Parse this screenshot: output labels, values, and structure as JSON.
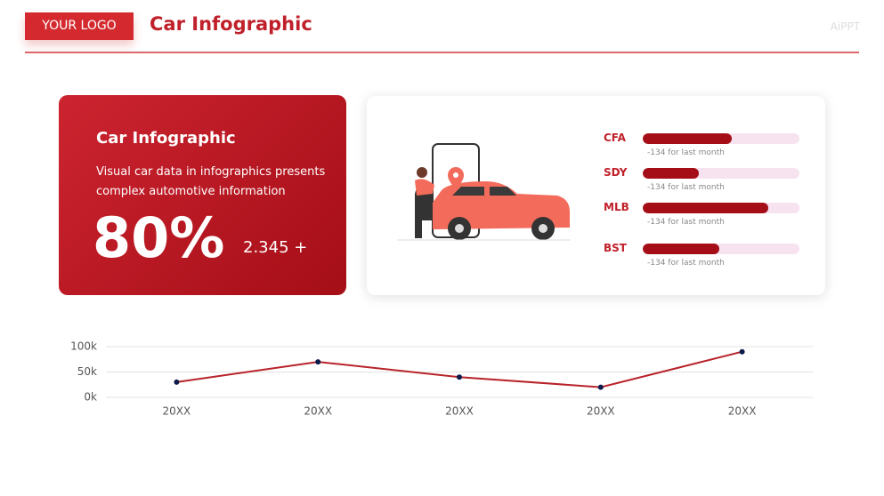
{
  "header": {
    "logo": "YOUR LOGO",
    "title": "Car Infographic",
    "brand": "AiPPT"
  },
  "card": {
    "title": "Car Infographic",
    "text": "Visual car data in infographics presents complex automotive information",
    "big_value": "80%",
    "sub_value": "2.345 +"
  },
  "progress": {
    "xlim": [
      0,
      100
    ],
    "items": [
      {
        "label": "CFA",
        "value": 57,
        "note": "-134 for last month"
      },
      {
        "label": "SDY",
        "value": 36,
        "note": "-134 for last month"
      },
      {
        "label": "MLB",
        "value": 80,
        "note": "-134 for last month"
      },
      {
        "label": "BST",
        "value": 49,
        "note": "-134 for last month"
      }
    ]
  },
  "chart_data": {
    "type": "line",
    "categories": [
      "20XX",
      "20XX",
      "20XX",
      "20XX",
      "20XX"
    ],
    "values": [
      30000,
      70000,
      40000,
      20000,
      90000
    ],
    "color": "#b8232a",
    "marker_color": "#0d1b4a",
    "ylim": [
      0,
      100000
    ],
    "yticks": [
      {
        "value": 0,
        "label": "0k"
      },
      {
        "value": 50000,
        "label": "50k"
      },
      {
        "value": 100000,
        "label": "100k"
      }
    ],
    "grid": true
  }
}
